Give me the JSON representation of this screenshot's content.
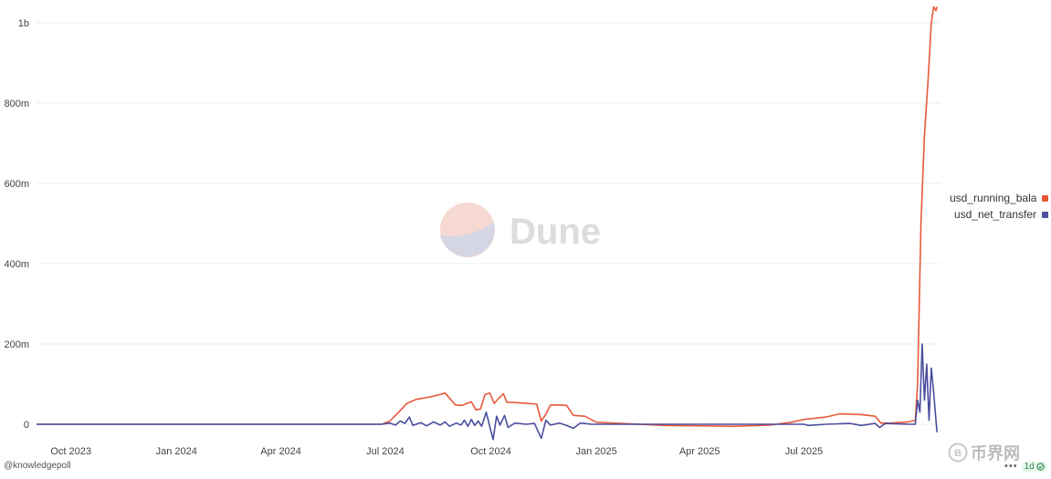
{
  "chart_data": {
    "type": "line",
    "y_ticks": [
      {
        "value": 0,
        "label": "0"
      },
      {
        "value": 200000000,
        "label": "200m"
      },
      {
        "value": 400000000,
        "label": "400m"
      },
      {
        "value": 600000000,
        "label": "600m"
      },
      {
        "value": 800000000,
        "label": "800m"
      },
      {
        "value": 1000000000,
        "label": "1b"
      }
    ],
    "x_ticks": [
      {
        "date": "2023-10-01",
        "label": "Oct 2023"
      },
      {
        "date": "2024-01-01",
        "label": "Jan 2024"
      },
      {
        "date": "2024-04-01",
        "label": "Apr 2024"
      },
      {
        "date": "2024-07-01",
        "label": "Jul 2024"
      },
      {
        "date": "2024-10-01",
        "label": "Oct 2024"
      },
      {
        "date": "2025-01-01",
        "label": "Jan 2025"
      },
      {
        "date": "2025-04-01",
        "label": "Apr 2025"
      },
      {
        "date": "2025-07-01",
        "label": "Jul 2025"
      }
    ],
    "ylim": [
      -20000000,
      1050000000
    ],
    "xlim": [
      "2023-09-01",
      "2025-10-28"
    ],
    "grid": "horizontal",
    "legend_position": "right",
    "series": [
      {
        "name": "usd_running_bala",
        "color": "#e8593a",
        "points": [
          [
            "2023-09-01",
            0
          ],
          [
            "2024-06-28",
            0
          ],
          [
            "2024-07-05",
            8000000
          ],
          [
            "2024-07-12",
            28000000
          ],
          [
            "2024-07-20",
            52000000
          ],
          [
            "2024-07-28",
            62000000
          ],
          [
            "2024-08-05",
            66000000
          ],
          [
            "2024-08-12",
            70000000
          ],
          [
            "2024-08-18",
            74000000
          ],
          [
            "2024-08-22",
            78000000
          ],
          [
            "2024-08-27",
            62000000
          ],
          [
            "2024-08-31",
            48000000
          ],
          [
            "2024-09-06",
            47000000
          ],
          [
            "2024-09-10",
            52000000
          ],
          [
            "2024-09-14",
            56000000
          ],
          [
            "2024-09-18",
            36000000
          ],
          [
            "2024-09-22",
            38000000
          ],
          [
            "2024-09-26",
            74000000
          ],
          [
            "2024-09-30",
            78000000
          ],
          [
            "2024-10-04",
            52000000
          ],
          [
            "2024-10-08",
            65000000
          ],
          [
            "2024-10-12",
            76000000
          ],
          [
            "2024-10-15",
            55000000
          ],
          [
            "2024-10-22",
            54000000
          ],
          [
            "2024-11-01",
            52000000
          ],
          [
            "2024-11-10",
            50000000
          ],
          [
            "2024-11-14",
            8000000
          ],
          [
            "2024-11-18",
            25000000
          ],
          [
            "2024-11-22",
            48000000
          ],
          [
            "2024-11-30",
            48000000
          ],
          [
            "2024-12-06",
            47000000
          ],
          [
            "2024-12-12",
            22000000
          ],
          [
            "2024-12-22",
            20000000
          ],
          [
            "2025-01-01",
            5000000
          ],
          [
            "2025-03-01",
            -3000000
          ],
          [
            "2025-05-01",
            -5000000
          ],
          [
            "2025-06-01",
            -2000000
          ],
          [
            "2025-06-20",
            5000000
          ],
          [
            "2025-07-01",
            12000000
          ],
          [
            "2025-07-20",
            18000000
          ],
          [
            "2025-08-01",
            26000000
          ],
          [
            "2025-08-20",
            24000000
          ],
          [
            "2025-09-01",
            20000000
          ],
          [
            "2025-09-06",
            3000000
          ],
          [
            "2025-09-15",
            3000000
          ],
          [
            "2025-09-30",
            6000000
          ],
          [
            "2025-10-06",
            10000000
          ],
          [
            "2025-10-08",
            100000000
          ],
          [
            "2025-10-11",
            500000000
          ],
          [
            "2025-10-14",
            720000000
          ],
          [
            "2025-10-17",
            850000000
          ],
          [
            "2025-10-20",
            1000000000
          ],
          [
            "2025-10-22",
            1040000000
          ],
          [
            "2025-10-24",
            1030000000
          ],
          [
            "2025-10-25",
            1040000000
          ]
        ]
      },
      {
        "name": "usd_net_transfer",
        "color": "#4b4f9e",
        "points": [
          [
            "2023-09-01",
            0
          ],
          [
            "2024-06-28",
            0
          ],
          [
            "2024-07-05",
            3000000
          ],
          [
            "2024-07-10",
            -2000000
          ],
          [
            "2024-07-14",
            8000000
          ],
          [
            "2024-07-18",
            2000000
          ],
          [
            "2024-07-22",
            18000000
          ],
          [
            "2024-07-25",
            -3000000
          ],
          [
            "2024-08-01",
            4000000
          ],
          [
            "2024-08-06",
            -4000000
          ],
          [
            "2024-08-12",
            6000000
          ],
          [
            "2024-08-18",
            -2000000
          ],
          [
            "2024-08-22",
            6000000
          ],
          [
            "2024-08-26",
            -5000000
          ],
          [
            "2024-09-01",
            3000000
          ],
          [
            "2024-09-05",
            -2000000
          ],
          [
            "2024-09-08",
            10000000
          ],
          [
            "2024-09-11",
            -5000000
          ],
          [
            "2024-09-14",
            12000000
          ],
          [
            "2024-09-17",
            -3000000
          ],
          [
            "2024-09-20",
            8000000
          ],
          [
            "2024-09-23",
            -5000000
          ],
          [
            "2024-09-27",
            30000000
          ],
          [
            "2024-09-30",
            -5000000
          ],
          [
            "2024-10-03",
            -38000000
          ],
          [
            "2024-10-06",
            20000000
          ],
          [
            "2024-10-09",
            -2000000
          ],
          [
            "2024-10-13",
            22000000
          ],
          [
            "2024-10-16",
            -8000000
          ],
          [
            "2024-10-22",
            3000000
          ],
          [
            "2024-11-01",
            0
          ],
          [
            "2024-11-08",
            2000000
          ],
          [
            "2024-11-14",
            -35000000
          ],
          [
            "2024-11-18",
            10000000
          ],
          [
            "2024-11-22",
            -2000000
          ],
          [
            "2024-11-30",
            3000000
          ],
          [
            "2024-12-06",
            -3000000
          ],
          [
            "2024-12-12",
            -10000000
          ],
          [
            "2024-12-18",
            3000000
          ],
          [
            "2024-12-28",
            0
          ],
          [
            "2025-07-01",
            0
          ],
          [
            "2025-07-05",
            -3000000
          ],
          [
            "2025-07-20",
            0
          ],
          [
            "2025-08-10",
            2000000
          ],
          [
            "2025-08-20",
            -3000000
          ],
          [
            "2025-09-01",
            2000000
          ],
          [
            "2025-09-05",
            -8000000
          ],
          [
            "2025-09-10",
            2000000
          ],
          [
            "2025-09-30",
            0
          ],
          [
            "2025-10-06",
            0
          ],
          [
            "2025-10-08",
            60000000
          ],
          [
            "2025-10-10",
            30000000
          ],
          [
            "2025-10-12",
            200000000
          ],
          [
            "2025-10-14",
            60000000
          ],
          [
            "2025-10-16",
            150000000
          ],
          [
            "2025-10-18",
            10000000
          ],
          [
            "2025-10-20",
            140000000
          ],
          [
            "2025-10-22",
            80000000
          ],
          [
            "2025-10-24",
            10000000
          ],
          [
            "2025-10-25",
            -20000000
          ]
        ]
      }
    ]
  },
  "watermark": {
    "text": "Dune"
  },
  "footer": {
    "author": "@knowledgepoll",
    "interval": "1d",
    "menu": "•••"
  },
  "site_watermark": {
    "text": "币界网"
  }
}
